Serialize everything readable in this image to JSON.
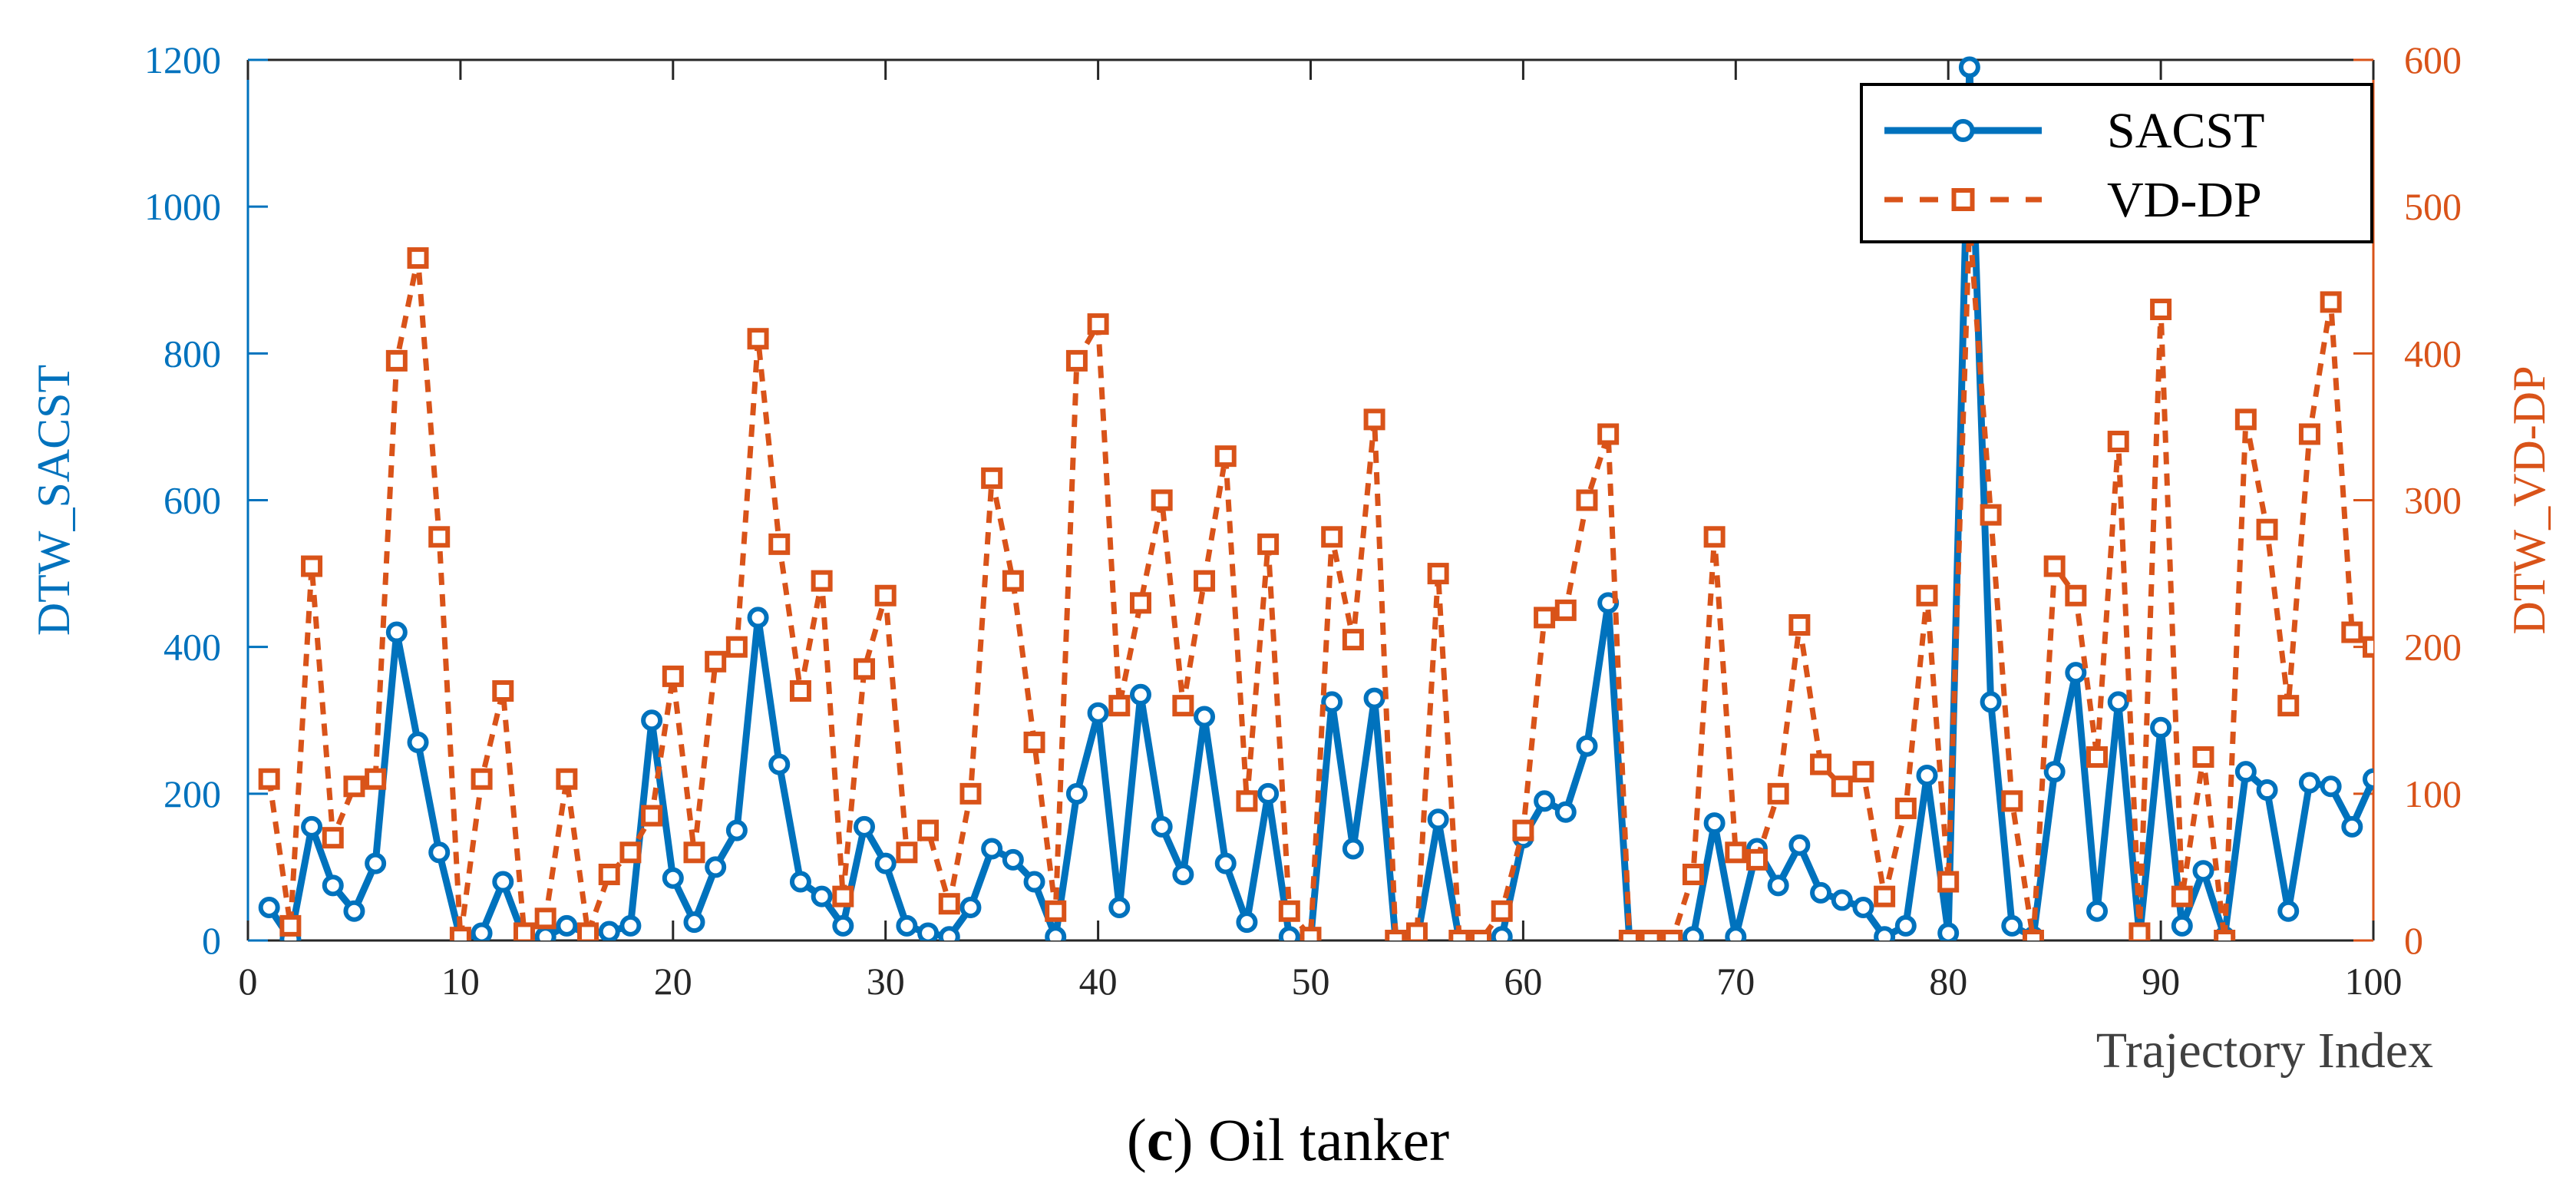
{
  "colors": {
    "left": "#0072BD",
    "right": "#D95319",
    "axis": "#262626",
    "text": "#404040"
  },
  "caption": {
    "letter": "c",
    "open": "(",
    "close": ")",
    "text": " Oil tanker"
  },
  "chart_data": {
    "type": "line",
    "xlabel": "Trajectory Index",
    "ylabel_left": "DTW_SACST",
    "ylabel_right": "DTW_VD-DP",
    "xlim": [
      0,
      100
    ],
    "ylim_left": [
      0,
      1200
    ],
    "ylim_right": [
      0,
      600
    ],
    "xticks": [
      0,
      10,
      20,
      30,
      40,
      50,
      60,
      70,
      80,
      90,
      100
    ],
    "yticks_left": [
      0,
      200,
      400,
      600,
      800,
      1000,
      1200
    ],
    "yticks_right": [
      0,
      100,
      200,
      300,
      400,
      500,
      600
    ],
    "legend_position": "top-right",
    "legend": [
      "SACST",
      "VD-DP"
    ],
    "x": [
      1,
      2,
      3,
      4,
      5,
      6,
      7,
      8,
      9,
      10,
      11,
      12,
      13,
      14,
      15,
      16,
      17,
      18,
      19,
      20,
      21,
      22,
      23,
      24,
      25,
      26,
      27,
      28,
      29,
      30,
      31,
      32,
      33,
      34,
      35,
      36,
      37,
      38,
      39,
      40,
      41,
      42,
      43,
      44,
      45,
      46,
      47,
      48,
      49,
      50,
      51,
      52,
      53,
      54,
      55,
      56,
      57,
      58,
      59,
      60,
      61,
      62,
      63,
      64,
      65,
      66,
      67,
      68,
      69,
      70,
      71,
      72,
      73,
      74,
      75,
      76,
      77,
      78,
      79,
      80,
      81,
      82,
      83,
      84,
      85,
      86,
      87,
      88,
      89,
      90,
      91,
      92,
      93,
      94,
      95,
      96,
      97,
      98,
      99,
      100
    ],
    "series": [
      {
        "name": "SACST",
        "axis": "left",
        "style": "solid-circle",
        "values": [
          45,
          2,
          155,
          75,
          40,
          105,
          420,
          270,
          120,
          2,
          10,
          80,
          3,
          5,
          20,
          10,
          12,
          20,
          300,
          85,
          25,
          100,
          150,
          440,
          240,
          80,
          60,
          20,
          155,
          105,
          20,
          10,
          5,
          45,
          125,
          110,
          80,
          5,
          200,
          310,
          45,
          335,
          155,
          90,
          305,
          105,
          25,
          200,
          5,
          2,
          325,
          125,
          330,
          0,
          0,
          165,
          0,
          0,
          5,
          140,
          190,
          175,
          265,
          460,
          0,
          0,
          0,
          5,
          160,
          5,
          125,
          75,
          130,
          65,
          55,
          45,
          5,
          20,
          225,
          10,
          1190,
          325,
          20,
          5,
          230,
          365,
          40,
          325,
          5,
          290,
          20,
          95,
          5,
          230,
          205,
          40,
          215,
          210,
          155,
          220
        ]
      },
      {
        "name": "VD-DP",
        "axis": "right",
        "style": "dashed-square",
        "values": [
          110,
          10,
          255,
          70,
          105,
          110,
          395,
          465,
          275,
          2,
          110,
          170,
          5,
          15,
          110,
          5,
          45,
          60,
          85,
          180,
          60,
          190,
          200,
          410,
          270,
          170,
          245,
          30,
          185,
          235,
          60,
          75,
          25,
          100,
          315,
          245,
          135,
          20,
          395,
          420,
          160,
          230,
          300,
          160,
          245,
          330,
          95,
          270,
          20,
          2,
          275,
          205,
          355,
          0,
          5,
          250,
          0,
          0,
          20,
          75,
          220,
          225,
          300,
          345,
          0,
          0,
          0,
          45,
          275,
          60,
          55,
          100,
          215,
          120,
          105,
          115,
          30,
          90,
          235,
          40,
          490,
          290,
          95,
          0,
          255,
          235,
          125,
          340,
          5,
          430,
          30,
          125,
          0,
          355,
          280,
          160,
          345,
          435,
          210,
          200
        ]
      }
    ]
  }
}
